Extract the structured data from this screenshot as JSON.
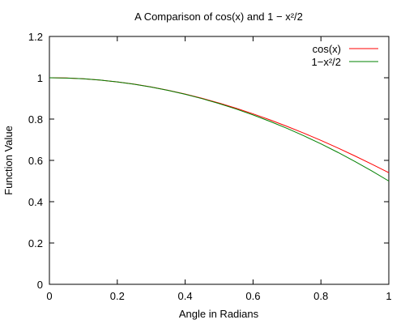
{
  "chart_data": {
    "type": "line",
    "title": "A Comparison of cos(x) and 1 − x²/2",
    "xlabel": "Angle in Radians",
    "ylabel": "Function Value",
    "xlim": [
      0,
      1
    ],
    "ylim": [
      0,
      1.2
    ],
    "x_ticks": [
      0,
      0.2,
      0.4,
      0.6,
      0.8,
      1
    ],
    "y_ticks": [
      0,
      0.2,
      0.4,
      0.6,
      0.8,
      1,
      1.2
    ],
    "x_tick_labels": [
      "0",
      "0.2",
      "0.4",
      "0.6",
      "0.8",
      "1"
    ],
    "y_tick_labels": [
      "0",
      "0.2",
      "0.4",
      "0.6",
      "0.8",
      "1",
      "1.2"
    ],
    "grid": false,
    "legend_position": "top-right",
    "x": [
      0,
      0.05,
      0.1,
      0.15,
      0.2,
      0.25,
      0.3,
      0.35,
      0.4,
      0.45,
      0.5,
      0.55,
      0.6,
      0.65,
      0.7,
      0.75,
      0.8,
      0.85,
      0.9,
      0.95,
      1
    ],
    "series": [
      {
        "name": "cos(x)",
        "color": "#ff0000",
        "values": [
          1,
          0.9988,
          0.995,
          0.9888,
          0.9801,
          0.9689,
          0.9553,
          0.9394,
          0.9211,
          0.9004,
          0.8776,
          0.8525,
          0.8253,
          0.7961,
          0.7648,
          0.7317,
          0.6967,
          0.66,
          0.6216,
          0.5817,
          0.5403
        ]
      },
      {
        "name": "1−x²/2",
        "color": "#008000",
        "values": [
          1,
          0.99875,
          0.995,
          0.98875,
          0.98,
          0.96875,
          0.955,
          0.93875,
          0.92,
          0.89875,
          0.875,
          0.84875,
          0.82,
          0.78875,
          0.755,
          0.71875,
          0.68,
          0.63875,
          0.595,
          0.54875,
          0.5
        ]
      }
    ]
  }
}
